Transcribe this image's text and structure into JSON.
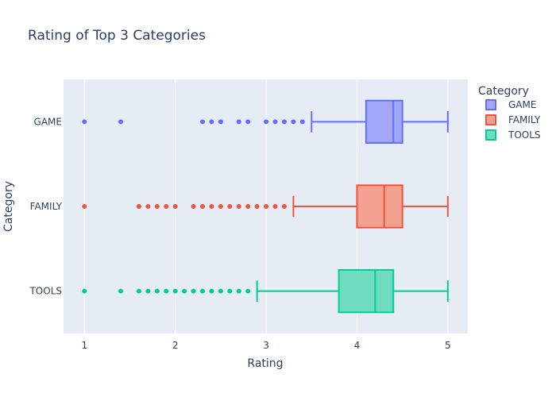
{
  "chart_data": {
    "type": "box",
    "orientation": "horizontal",
    "title": "Rating of Top 3 Categories",
    "xlabel": "Rating",
    "ylabel": "Category",
    "xlim": [
      0.77,
      5.22
    ],
    "x_ticks": [
      1,
      2,
      3,
      4,
      5
    ],
    "x_tick_labels": [
      "1",
      "2",
      "3",
      "4",
      "5"
    ],
    "categories": [
      "GAME",
      "FAMILY",
      "TOOLS"
    ],
    "legend": {
      "title": "Category",
      "position": "top-right"
    },
    "grid": true,
    "series": [
      {
        "name": "GAME",
        "color": "#636efa",
        "fill": "#a2a8f7",
        "stats": {
          "lower_whisker": 3.5,
          "q1": 4.1,
          "median": 4.4,
          "q3": 4.5,
          "upper_whisker": 5.0
        },
        "outliers": [
          1.0,
          1.4,
          2.3,
          2.4,
          2.5,
          2.7,
          2.8,
          3.0,
          3.1,
          3.2,
          3.3,
          3.4
        ]
      },
      {
        "name": "FAMILY",
        "color": "#ef553b",
        "fill": "#f2a08f",
        "stats": {
          "lower_whisker": 3.3,
          "q1": 4.0,
          "median": 4.3,
          "q3": 4.5,
          "upper_whisker": 5.0
        },
        "outliers": [
          1.0,
          1.6,
          1.7,
          1.8,
          1.9,
          2.0,
          2.2,
          2.3,
          2.4,
          2.5,
          2.6,
          2.7,
          2.8,
          2.9,
          3.0,
          3.1,
          3.2
        ]
      },
      {
        "name": "TOOLS",
        "color": "#00cc96",
        "fill": "#6fdcc0",
        "stats": {
          "lower_whisker": 2.9,
          "q1": 3.8,
          "median": 4.2,
          "q3": 4.4,
          "upper_whisker": 5.0
        },
        "outliers": [
          1.0,
          1.4,
          1.6,
          1.7,
          1.8,
          1.9,
          2.0,
          2.1,
          2.2,
          2.3,
          2.4,
          2.5,
          2.6,
          2.7,
          2.8
        ]
      }
    ]
  }
}
